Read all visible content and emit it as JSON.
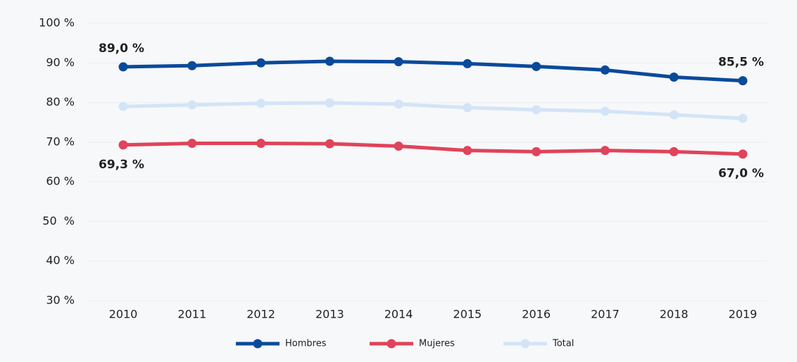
{
  "chart_data": {
    "type": "line",
    "x": [
      2010,
      2011,
      2012,
      2013,
      2014,
      2015,
      2016,
      2017,
      2018,
      2019
    ],
    "xticks": [
      2010,
      2011,
      2012,
      2013,
      2014,
      2015,
      2016,
      2017,
      2018,
      2019
    ],
    "series": [
      {
        "name": "Hombres",
        "color": "#0a4a9a",
        "values": [
          89.0,
          89.3,
          90.0,
          90.4,
          90.3,
          89.8,
          89.1,
          88.2,
          86.4,
          85.5
        ],
        "value_labels": [
          "89,0 %",
          null,
          null,
          null,
          null,
          null,
          null,
          null,
          null,
          "85,5 %"
        ]
      },
      {
        "name": "Mujeres",
        "color": "#e0435a",
        "values": [
          69.3,
          69.7,
          69.7,
          69.6,
          69.0,
          67.9,
          67.6,
          67.9,
          67.6,
          67.0
        ],
        "value_labels": [
          "69,3 %",
          null,
          null,
          null,
          null,
          null,
          null,
          null,
          null,
          "67,0 %"
        ]
      },
      {
        "name": "Total",
        "color": "#d3e4f7",
        "values": [
          79.0,
          79.4,
          79.8,
          79.9,
          79.6,
          78.7,
          78.2,
          77.8,
          76.9,
          76.0
        ]
      }
    ],
    "ylim": [
      30,
      100
    ],
    "yticks": [
      {
        "value": 30,
        "label": "30 %"
      },
      {
        "value": 40,
        "label": "40 %"
      },
      {
        "value": 50,
        "label": "50  %"
      },
      {
        "value": 60,
        "label": "60 %"
      },
      {
        "value": 70,
        "label": "70 %"
      },
      {
        "value": 80,
        "label": "80 %"
      },
      {
        "value": 90,
        "label": "90 %"
      },
      {
        "value": 100,
        "label": "100 %"
      }
    ],
    "grid": true,
    "legend": "bottom"
  }
}
